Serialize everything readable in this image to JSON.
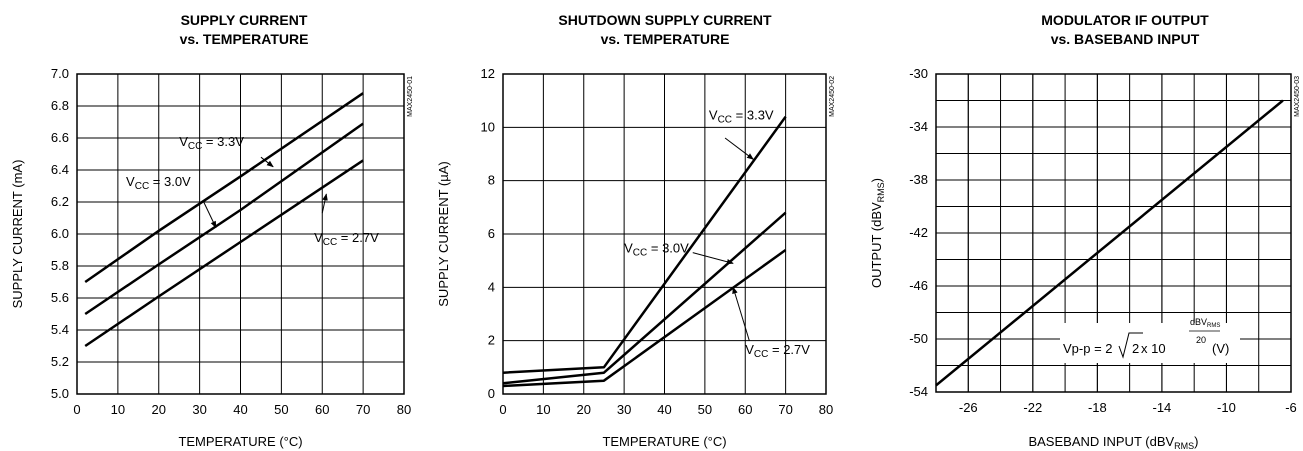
{
  "chart_data": [
    {
      "type": "line",
      "title": [
        "SUPPLY CURRENT",
        "vs. TEMPERATURE"
      ],
      "xlabel": "TEMPERATURE (°C)",
      "ylabel": "SUPPLY CURRENT (mA)",
      "xlim": [
        0,
        80
      ],
      "ylim": [
        5.0,
        7.0
      ],
      "xticks": [
        "0",
        "10",
        "20",
        "30",
        "40",
        "50",
        "60",
        "70",
        "80"
      ],
      "yticks": [
        "5.0",
        "5.2",
        "5.4",
        "5.6",
        "5.8",
        "6.0",
        "6.2",
        "6.4",
        "6.6",
        "6.8",
        "7.0"
      ],
      "grid": true,
      "part_code": "MAX2450-01",
      "series": [
        {
          "name": "VCC = 3.3V",
          "x": [
            2,
            20,
            40,
            70
          ],
          "y": [
            5.7,
            6.02,
            6.36,
            6.88
          ]
        },
        {
          "name": "VCC = 3.0V",
          "x": [
            2,
            20,
            40,
            70
          ],
          "y": [
            5.5,
            5.81,
            6.15,
            6.69
          ]
        },
        {
          "name": "VCC = 2.7V",
          "x": [
            2,
            20,
            40,
            70
          ],
          "y": [
            5.3,
            5.61,
            5.95,
            6.46
          ]
        }
      ],
      "annotations": [
        {
          "label": {
            "v": "V",
            "sub": "CC",
            "rest": " = 3.3V"
          },
          "text_at": [
            25,
            6.55
          ],
          "arrow_from": [
            45,
            6.48
          ],
          "arrow_to": [
            48,
            6.42
          ]
        },
        {
          "label": {
            "v": "V",
            "sub": "CC",
            "rest": " = 3.0V"
          },
          "text_at": [
            12,
            6.3
          ],
          "arrow_from": [
            31,
            6.2
          ],
          "arrow_to": [
            34,
            6.04
          ]
        },
        {
          "label": {
            "v": "V",
            "sub": "CC",
            "rest": " = 2.7V"
          },
          "text_at": [
            58,
            5.95
          ],
          "arrow_from": [
            60,
            6.13
          ],
          "arrow_to": [
            61,
            6.25
          ]
        }
      ]
    },
    {
      "type": "line",
      "title": [
        "SHUTDOWN SUPPLY CURRENT",
        "vs. TEMPERATURE"
      ],
      "xlabel": "TEMPERATURE (°C)",
      "ylabel": "SUPPLY CURRENT (µA)",
      "xlim": [
        0,
        80
      ],
      "ylim": [
        0,
        12
      ],
      "xticks": [
        "0",
        "10",
        "20",
        "30",
        "40",
        "50",
        "60",
        "70",
        "80"
      ],
      "yticks": [
        "0",
        "2",
        "4",
        "6",
        "8",
        "10",
        "12"
      ],
      "grid": true,
      "part_code": "MAX2450-02",
      "series": [
        {
          "name": "VCC = 3.3V",
          "x": [
            0,
            25,
            70
          ],
          "y": [
            0.8,
            1.0,
            10.4
          ]
        },
        {
          "name": "VCC = 3.0V",
          "x": [
            0,
            25,
            70
          ],
          "y": [
            0.4,
            0.8,
            6.8
          ]
        },
        {
          "name": "VCC = 2.7V",
          "x": [
            0,
            25,
            70
          ],
          "y": [
            0.3,
            0.5,
            5.4
          ]
        }
      ],
      "annotations": [
        {
          "label": {
            "v": "V",
            "sub": "CC",
            "rest": " = 3.3V"
          },
          "text_at": [
            51,
            10.3
          ],
          "arrow_from": [
            55,
            9.6
          ],
          "arrow_to": [
            62,
            8.8
          ]
        },
        {
          "label": {
            "v": "V",
            "sub": "CC",
            "rest": " = 3.0V"
          },
          "text_at": [
            30,
            5.3
          ],
          "arrow_from": [
            47,
            5.3
          ],
          "arrow_to": [
            57,
            4.9
          ]
        },
        {
          "label": {
            "v": "V",
            "sub": "CC",
            "rest": " = 2.7V"
          },
          "text_at": [
            60,
            1.5
          ],
          "arrow_from": [
            61,
            2.0
          ],
          "arrow_to": [
            57,
            4.0
          ]
        }
      ]
    },
    {
      "type": "line",
      "title": [
        "MODULATOR IF OUTPUT",
        "vs. BASEBAND INPUT"
      ],
      "xlabel": {
        "main": "BASEBAND INPUT (dBV",
        "sub": "RMS",
        "close": ")"
      },
      "ylabel": {
        "main": "OUTPUT (dBV",
        "sub": "RMS",
        "close": ")"
      },
      "xlim": [
        -28,
        -6
      ],
      "ylim": [
        -54,
        -30
      ],
      "xticks": [
        "-26",
        "-22",
        "-18",
        "-14",
        "-10",
        "-6"
      ],
      "yticks": [
        "-54",
        "-50",
        "-46",
        "-42",
        "-38",
        "-34",
        "-30"
      ],
      "grid": true,
      "part_code": "MAX2450-03",
      "series": [
        {
          "x": [
            -28,
            -6.5
          ],
          "y": [
            -53.5,
            -32
          ]
        }
      ],
      "formula": {
        "lhs": "Vp-p = 2",
        "root": "2",
        "times": " x 10",
        "exp_num": "dBV",
        "exp_num_sub": "RMS",
        "exp_den": "20",
        "unit": "(V)"
      }
    }
  ]
}
